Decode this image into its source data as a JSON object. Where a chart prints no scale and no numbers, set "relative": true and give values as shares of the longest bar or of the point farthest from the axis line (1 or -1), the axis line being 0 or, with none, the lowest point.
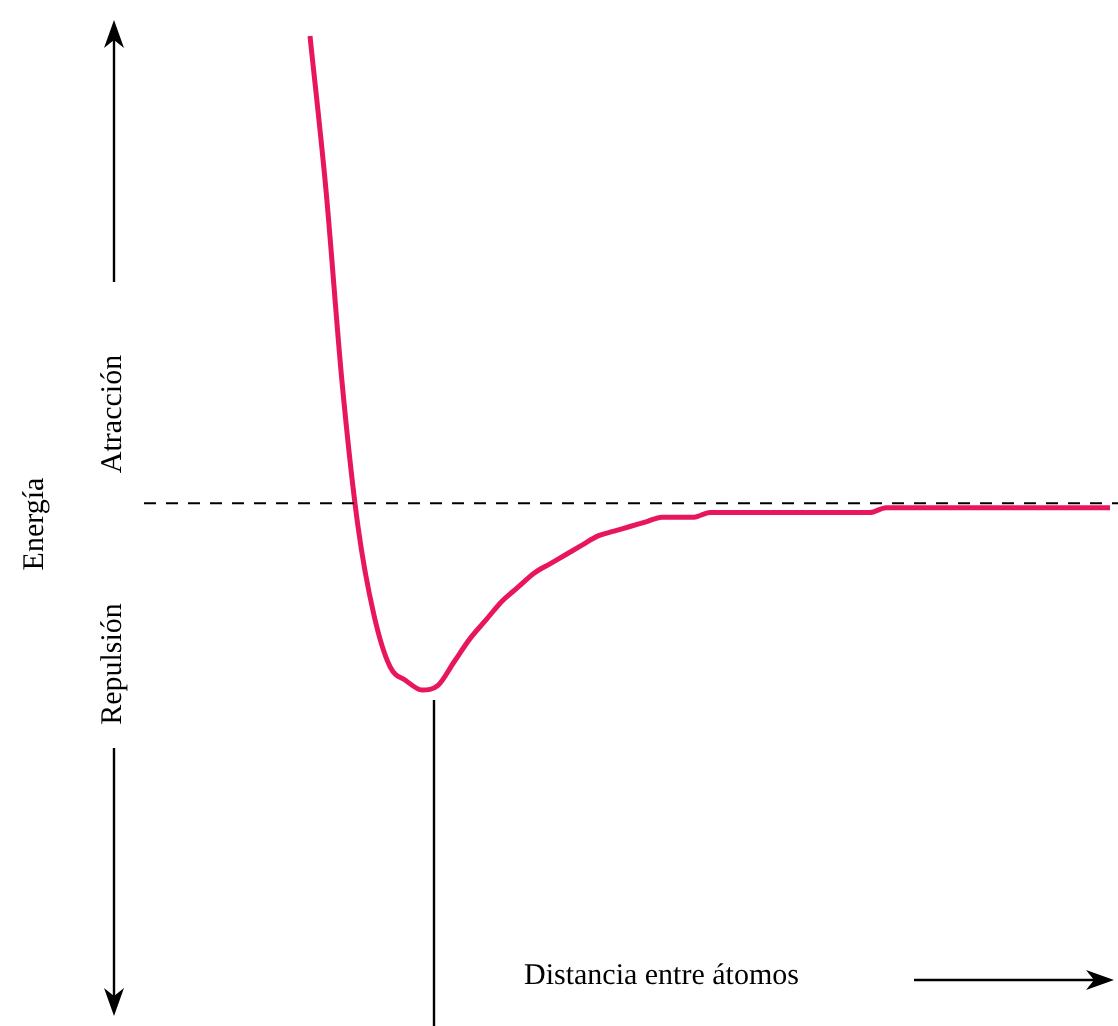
{
  "chart_data": {
    "type": "line",
    "relative": true,
    "annotations": [
      "Energía",
      "Atracción",
      "Repulsión",
      "Distancia entre átomos"
    ],
    "categories": [
      null,
      null,
      null,
      null,
      null,
      null,
      null,
      null,
      null,
      null,
      null,
      null,
      null,
      null,
      null,
      null,
      null,
      null,
      null,
      null,
      null,
      null,
      null,
      null,
      null,
      null,
      null,
      null,
      null,
      null,
      null,
      null,
      null,
      null,
      null,
      null,
      null,
      null,
      null,
      null,
      null,
      null,
      null,
      null,
      null,
      null,
      null,
      null,
      null,
      null,
      null
    ],
    "series": [
      {
        "color": "#e8175d",
        "values": [
          1.0,
          0.67,
          0.26,
          -0.05,
          -0.24,
          -0.35,
          -0.38,
          -0.4,
          -0.39,
          -0.34,
          -0.29,
          -0.25,
          -0.21,
          -0.18,
          -0.15,
          -0.13,
          -0.11,
          -0.09,
          -0.07,
          -0.06,
          -0.05,
          -0.04,
          -0.03,
          -0.03,
          -0.03,
          -0.02,
          -0.02,
          -0.02,
          -0.02,
          -0.02,
          -0.02,
          -0.02,
          -0.02,
          -0.02,
          -0.02,
          -0.02,
          -0.01,
          -0.01,
          -0.01,
          -0.01,
          -0.01,
          -0.01,
          -0.01,
          -0.01,
          -0.01,
          -0.01,
          -0.01,
          -0.01,
          -0.01,
          -0.01,
          -0.01
        ]
      }
    ],
    "ref_lines": [
      {
        "axis": "y",
        "value": 0,
        "color": "#000000",
        "line_style": "dashed"
      }
    ],
    "legend": false,
    "marker": "none",
    "line_style": "solid"
  }
}
